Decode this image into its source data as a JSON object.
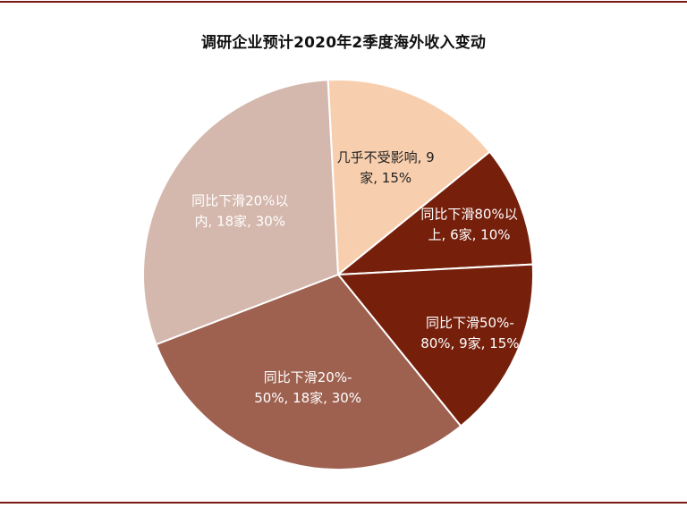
{
  "chart_data": {
    "type": "pie",
    "title": "调研企业预计2020年2季度海外收入变动",
    "slices": [
      {
        "category": "几乎不受影响",
        "count": 9,
        "percent": 15,
        "label_lines": [
          "几乎不受影响, 9",
          "家, 15%"
        ],
        "color": "#F8CFAE",
        "label_color": "#222222"
      },
      {
        "category": "同比下滑80%以上",
        "count": 6,
        "percent": 10,
        "label_lines": [
          "同比下滑80%以",
          "上, 6家, 10%"
        ],
        "color": "#76200C",
        "label_color": "#ffffff"
      },
      {
        "category": "同比下滑50%-80%",
        "count": 9,
        "percent": 15,
        "label_lines": [
          "同比下滑50%-",
          "80%, 9家, 15%"
        ],
        "color": "#76200C",
        "label_color": "#ffffff"
      },
      {
        "category": "同比下滑20%-50%",
        "count": 18,
        "percent": 30,
        "label_lines": [
          "同比下滑20%-",
          "50%, 18家, 30%"
        ],
        "color": "#9E6150",
        "label_color": "#ffffff"
      },
      {
        "category": "同比下滑20%以内",
        "count": 18,
        "percent": 30,
        "label_lines": [
          "同比下滑20%以",
          "内, 18家, 30%"
        ],
        "color": "#D5B8AD",
        "label_color": "#ffffff"
      }
    ]
  }
}
